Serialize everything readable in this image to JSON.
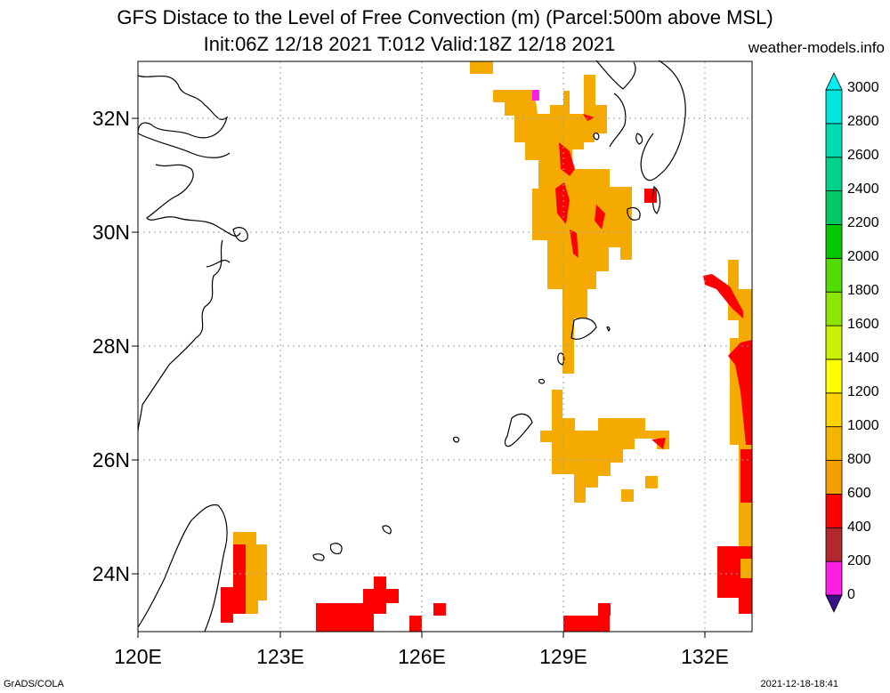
{
  "title": {
    "line1": "GFS Distace to the Level of Free Convection (m) (Parcel:500m above MSL)",
    "line2": "Init:06Z 12/18 2021 T:012 Valid:18Z 12/18 2021",
    "site": "weather-models.info"
  },
  "footer": {
    "credit": "GrADS/COLA",
    "timestamp": "2021-12-18-18:41"
  },
  "map": {
    "lon_range": [
      120,
      133
    ],
    "lat_range": [
      23,
      33
    ],
    "lat_labels": [
      "24N",
      "26N",
      "28N",
      "30N",
      "32N"
    ],
    "lon_labels": [
      "120E",
      "123E",
      "126E",
      "129E",
      "132E"
    ]
  },
  "colorbar": {
    "labels": [
      "0",
      "200",
      "400",
      "600",
      "800",
      "1000",
      "1200",
      "1400",
      "1600",
      "1800",
      "2000",
      "2200",
      "2400",
      "2600",
      "2800",
      "3000"
    ],
    "colors": [
      "#3c0e8c",
      "#ff1ee6",
      "#b4282d",
      "#ff0000",
      "#f5a000",
      "#f5b400",
      "#ffd200",
      "#ffff00",
      "#c8f000",
      "#8ce600",
      "#50dc00",
      "#00c800",
      "#00c864",
      "#00d28c",
      "#00dcb4",
      "#00e6dc",
      "#00f0f0"
    ]
  },
  "legend_colors": {
    "orange": "#f5aa00",
    "red": "#ff0000",
    "magenta": "#ff1ee6"
  }
}
